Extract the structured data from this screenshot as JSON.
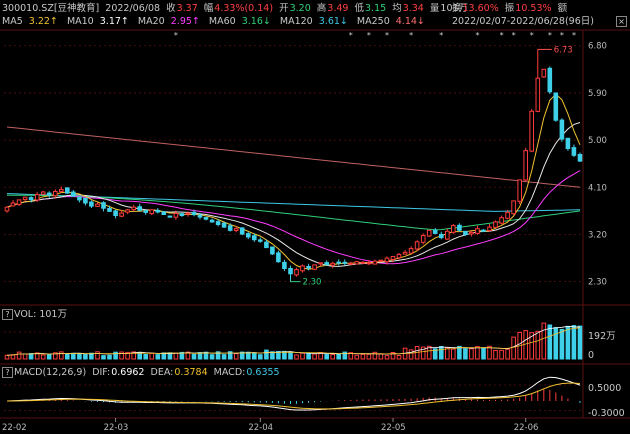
{
  "header": {
    "symbol": "300010.SZ[豆神教育]",
    "date": "2022/06/08",
    "close_label": "收",
    "close": "3.37",
    "change_label": "幅",
    "change": "4.33%(0.14)",
    "open_label": "开",
    "open": "3.20",
    "high_label": "高",
    "high": "3.49",
    "low_label": "低",
    "low": "3.15",
    "avg_label": "均",
    "avg": "3.34",
    "volume_label": "量",
    "volume": "101万",
    "range": "2022/02/07-2022/06/28(96日)",
    "turnover_label": "换",
    "turnover": "13.60%",
    "amplitude_label": "振",
    "amplitude": "10.53%",
    "amount_label": "额"
  },
  "ma_legend": [
    {
      "label": "MA5",
      "value": "3.22↑",
      "color": "#f2c230"
    },
    {
      "label": "MA10",
      "value": "3.17↑",
      "color": "#ffffff"
    },
    {
      "label": "MA20",
      "value": "2.95↑",
      "color": "#ff3dff"
    },
    {
      "label": "MA60",
      "value": "3.16↓",
      "color": "#2fd07a"
    },
    {
      "label": "MA120",
      "value": "3.61↓",
      "color": "#3ec8e6"
    },
    {
      "label": "MA250",
      "value": "4.14↓",
      "color": "#ff6f6f"
    }
  ],
  "vol_panel": {
    "label": "VOL: 101万",
    "tick_top": "192万",
    "tick_zero": "0"
  },
  "macd_panel": {
    "name": "MACD(12,26,9)",
    "dif_label": "DIF:",
    "dif": "0.6962",
    "dea_label": "DEA:",
    "dea": "0.3784",
    "macd_label": "MACD:",
    "macd": "0.6355",
    "ticks": [
      "0.5000",
      "-0.3000"
    ]
  },
  "markers": {
    "high": "6.73",
    "low": "2.30"
  },
  "colors": {
    "up": "#ff3b3b",
    "down": "#3ed0e8",
    "background": "#000000",
    "grid": "#5a1010"
  },
  "chart_data": {
    "type": "candlestick",
    "price_axis": {
      "ticks": [
        "6.80",
        "5.90",
        "5.00",
        "4.10",
        "3.20",
        "2.30"
      ],
      "ylim": [
        1.95,
        7.1
      ]
    },
    "x_tick_labels": [
      "22-02",
      "22-03",
      "22-04",
      "22-05",
      "22-06"
    ],
    "x_tick_index": [
      0,
      18,
      42,
      64,
      86
    ],
    "close": [
      3.72,
      3.8,
      3.86,
      3.91,
      3.86,
      3.96,
      4.01,
      3.95,
      4.02,
      4.06,
      3.99,
      3.93,
      3.86,
      3.8,
      3.74,
      3.78,
      3.7,
      3.64,
      3.56,
      3.61,
      3.67,
      3.72,
      3.66,
      3.62,
      3.67,
      3.63,
      3.58,
      3.55,
      3.6,
      3.56,
      3.61,
      3.58,
      3.53,
      3.49,
      3.44,
      3.39,
      3.34,
      3.28,
      3.31,
      3.21,
      3.15,
      3.1,
      3.07,
      2.95,
      2.83,
      2.68,
      2.55,
      2.45,
      2.53,
      2.6,
      2.56,
      2.62,
      2.66,
      2.62,
      2.65,
      2.67,
      2.66,
      2.65,
      2.68,
      2.67,
      2.66,
      2.69,
      2.71,
      2.75,
      2.78,
      2.82,
      2.86,
      2.93,
      3.06,
      3.18,
      3.28,
      3.22,
      3.14,
      3.26,
      3.37,
      3.28,
      3.2,
      3.24,
      3.31,
      3.26,
      3.34,
      3.44,
      3.52,
      3.62,
      3.84,
      4.24,
      4.8,
      5.55,
      6.18,
      6.35,
      5.92,
      5.38,
      5.02,
      4.84,
      4.71,
      4.6
    ]
  }
}
